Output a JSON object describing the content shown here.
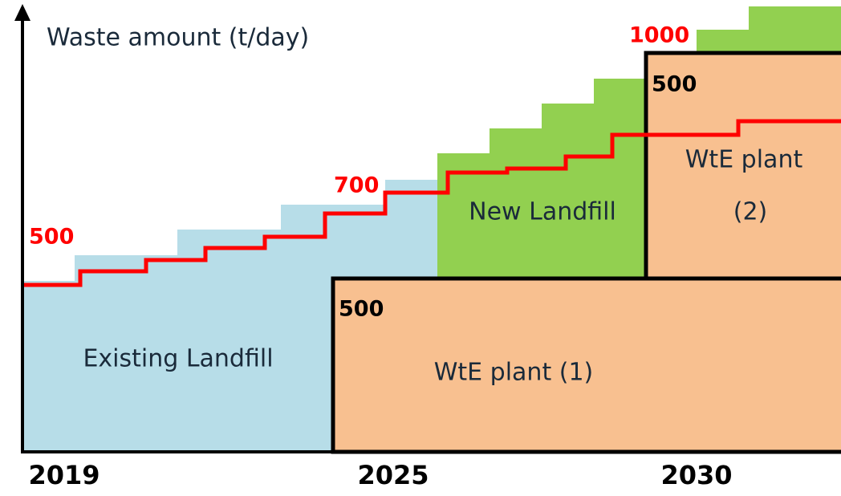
{
  "axis_label": "Waste amount (t/day)",
  "years": [
    "2019",
    "2025",
    "2030"
  ],
  "regions": {
    "existing_landfill": "Existing Landfill",
    "new_landfill": "New Landfill",
    "wte_plant_1": "WtE plant (1)",
    "wte_plant_2_line1": "WtE plant",
    "wte_plant_2_line2": "(2)"
  },
  "demand_labels": [
    "500",
    "700",
    "1000"
  ],
  "capacity_labels": [
    "500",
    "500"
  ]
}
